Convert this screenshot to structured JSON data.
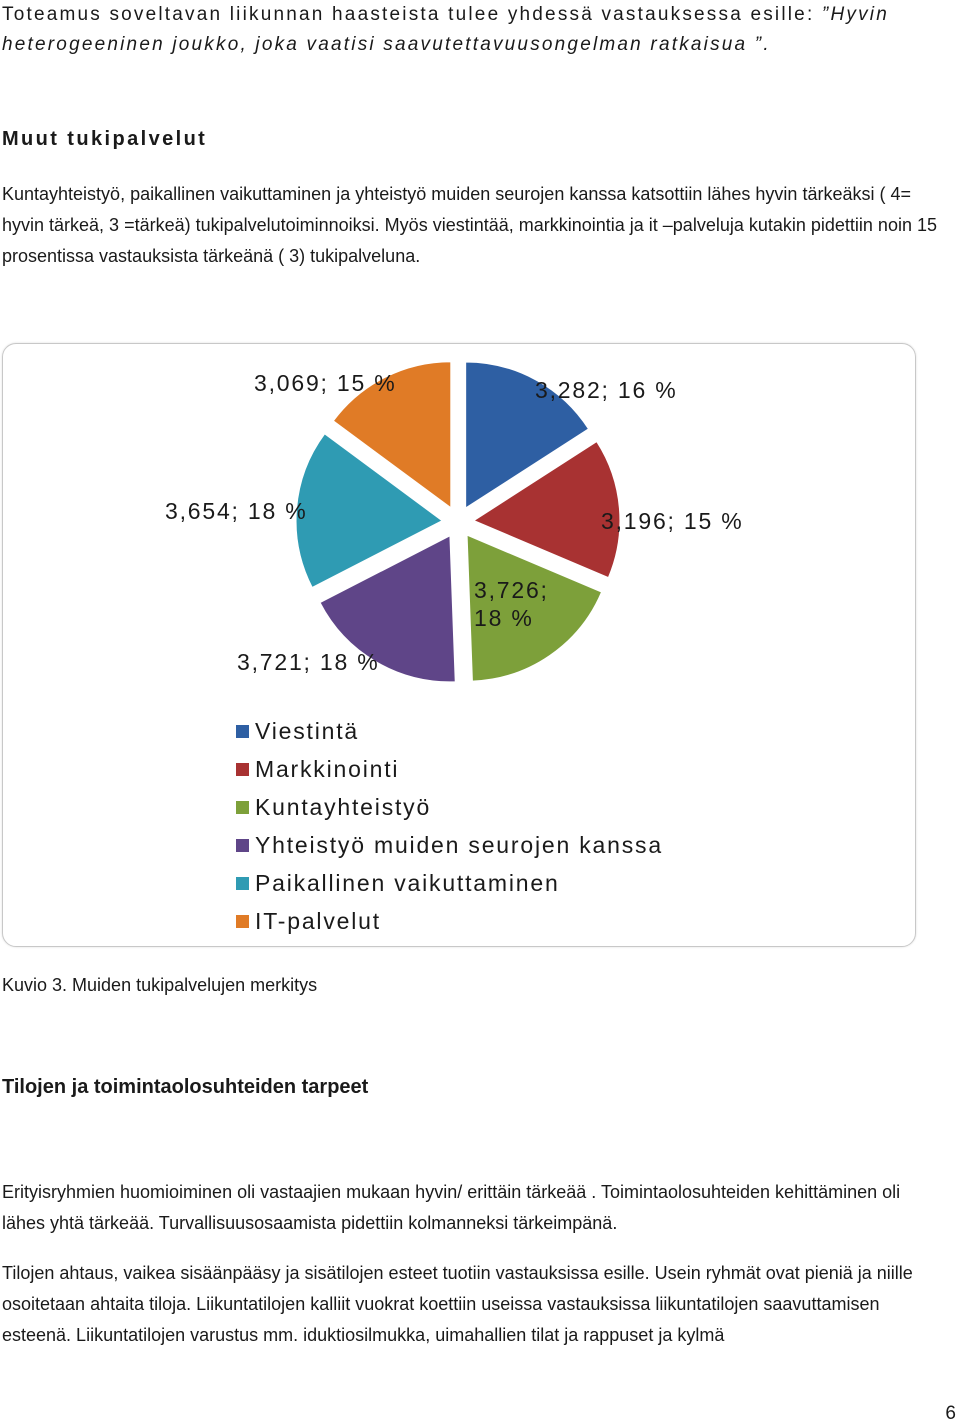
{
  "intro": {
    "line1_normal": "Toteamus soveltavan liikunnan haasteista tulee yhdessä vastauksessa esille: ",
    "line1_italic": "”Hyvin heterogeeninen joukko, joka vaatisi  saavutettavuusongelman ratkaisua ”."
  },
  "section1": {
    "heading": "Muut tukipalvelut",
    "paragraph": "Kuntayhteistyö, paikallinen vaikuttaminen ja yhteistyö muiden seurojen kanssa katsottiin lähes hyvin tärkeäksi ( 4= hyvin tärkeä, 3 =tärkeä) tukipalvelutoiminnoiksi. Myös viestintää, markkinointia ja it –palveluja kutakin pidettiin noin 15 prosentissa vastauksista tärkeänä ( 3) tukipalveluna."
  },
  "chart_data": {
    "type": "pie",
    "title": "",
    "legend_position": "bottom",
    "series": [
      {
        "name": "Viestintä",
        "value": 3.282,
        "label": "3,282; 16 %",
        "color": "#2e5fa3"
      },
      {
        "name": "Markkinointi",
        "value": 3.196,
        "label": "3,196; 15 %",
        "color": "#a83232"
      },
      {
        "name": "Kuntayhteistyö",
        "value": 3.726,
        "label": "3,726; 18 %",
        "label_line1": "3,726;",
        "label_line2": "18 %",
        "color": "#7da03a"
      },
      {
        "name": "Yhteistyö muiden seurojen kanssa",
        "value": 3.721,
        "label": "3,721; 18 %",
        "color": "#5f4588"
      },
      {
        "name": "Paikallinen vaikuttaminen",
        "value": 3.654,
        "label": "3,654; 18 %",
        "color": "#2f9bb3"
      },
      {
        "name": "IT-palvelut",
        "value": 3.069,
        "label": "3,069; 15 %",
        "color": "#e07b26"
      }
    ]
  },
  "caption": "Kuvio 3. Muiden tukipalvelujen merkitys",
  "section2": {
    "heading": "Tilojen ja toimintaolosuhteiden tarpeet",
    "paragraph1": "Erityisryhmien huomioiminen oli  vastaajien mukaan hyvin/ erittäin tärkeää . Toimintaolosuhteiden kehittäminen oli  lähes yhtä tärkeää. Turvallisuusosaamista pidettiin kolmanneksi tärkeimpänä.",
    "paragraph2": "Tilojen ahtaus, vaikea sisäänpääsy ja sisätilojen esteet tuotiin vastauksissa esille. Usein ryhmät ovat pieniä ja  niille osoitetaan ahtaita tiloja. Liikuntatilojen kalliit vuokrat koettiin useissa vastauksissa liikuntatilojen saavuttamisen esteenä. Liikuntatilojen varustus mm. iduktiosilmukka, uimahallien tilat ja rappuset ja kylmä"
  },
  "page_number": "6"
}
